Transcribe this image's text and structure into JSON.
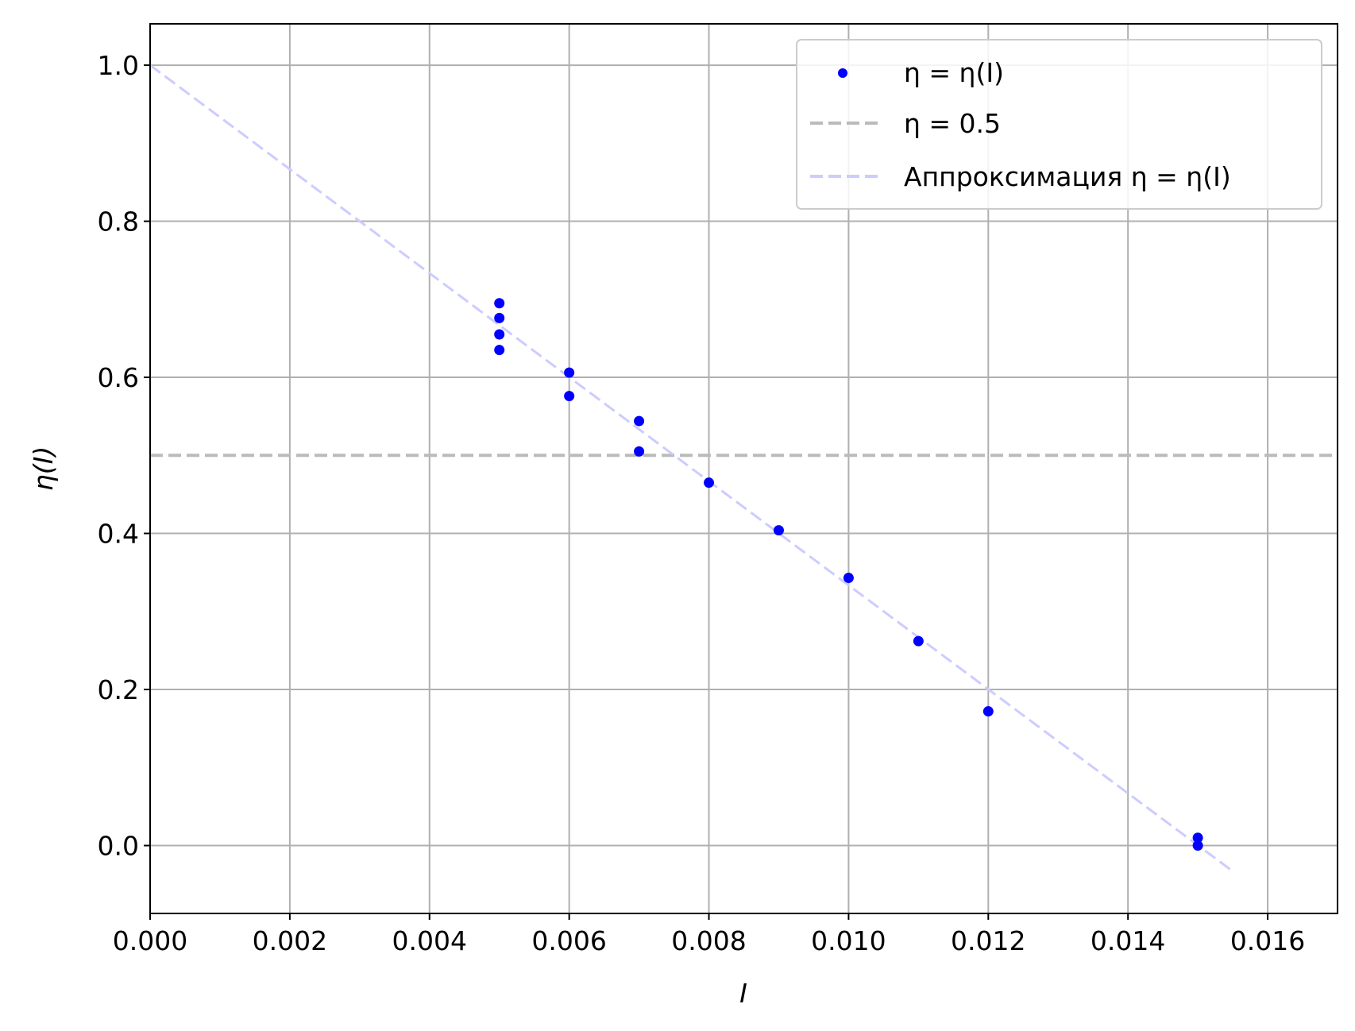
{
  "chart_data": {
    "type": "scatter",
    "title": "",
    "xlabel": "I",
    "ylabel": "η(I)",
    "xlim": [
      0,
      0.017
    ],
    "ylim": [
      -0.087,
      1.053
    ],
    "grid": true,
    "legend_placement": "top-right",
    "xticks": [
      "0.000",
      "0.002",
      "0.004",
      "0.006",
      "0.008",
      "0.010",
      "0.012",
      "0.014",
      "0.016"
    ],
    "xtick_values": [
      0,
      0.002,
      0.004,
      0.006,
      0.008,
      0.01,
      0.012,
      0.014,
      0.016
    ],
    "yticks": [
      "0.0",
      "0.2",
      "0.4",
      "0.6",
      "0.8",
      "1.0"
    ],
    "ytick_values": [
      0,
      0.2,
      0.4,
      0.6,
      0.8,
      1.0
    ],
    "series": [
      {
        "name": "η = η(I)",
        "kind": "scatter",
        "color": "#0000ff",
        "x": [
          0.005,
          0.005,
          0.005,
          0.005,
          0.006,
          0.006,
          0.007,
          0.007,
          0.008,
          0.009,
          0.01,
          0.011,
          0.012,
          0.015,
          0.015
        ],
        "y": [
          0.695,
          0.676,
          0.655,
          0.635,
          0.606,
          0.576,
          0.544,
          0.505,
          0.465,
          0.404,
          0.343,
          0.262,
          0.172,
          0.01,
          0.0
        ]
      },
      {
        "name": "η = 0.5",
        "kind": "hline",
        "color": "#bbbbbb",
        "y": 0.5
      },
      {
        "name": "Аппроксимация η = η(I)",
        "kind": "line",
        "color": "#ccccff",
        "x": [
          0,
          0.0155
        ],
        "y": [
          1.0,
          -0.033
        ]
      }
    ]
  }
}
